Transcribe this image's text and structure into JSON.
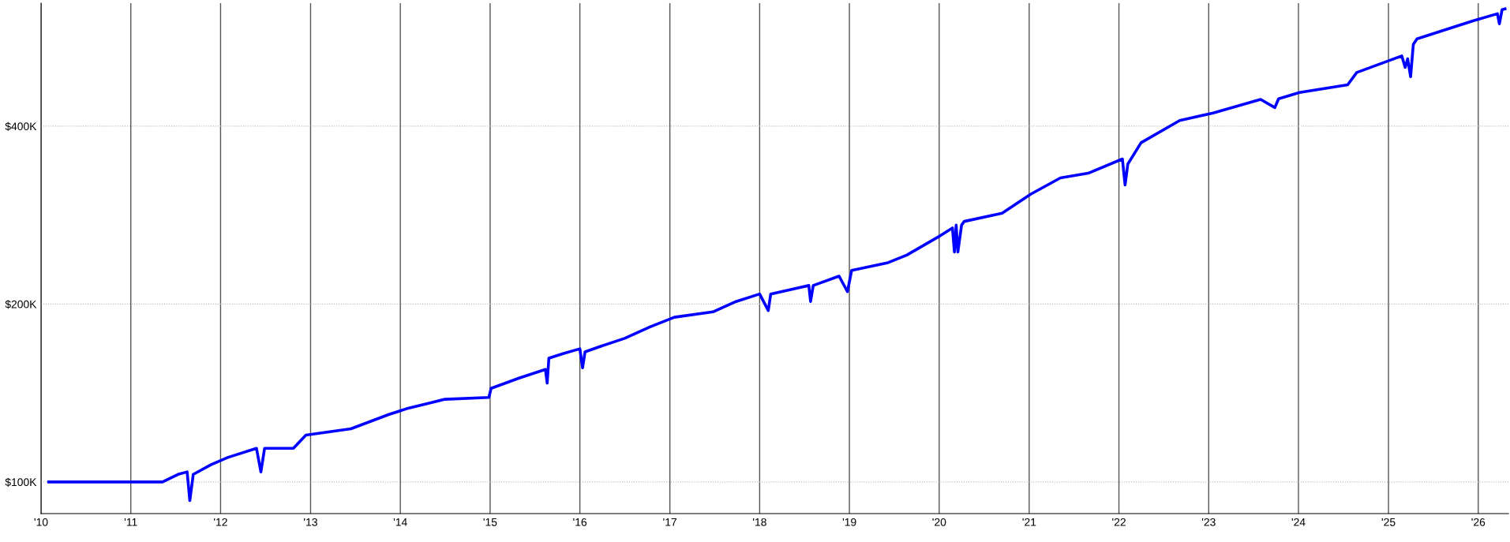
{
  "chart_data": {
    "type": "line",
    "log": "y",
    "grid": true,
    "marker": "none",
    "line_style": "solid",
    "x": [
      "2010-02-01",
      "2011-05-10",
      "2011-07-12",
      "2011-08-18",
      "2011-08-29",
      "2011-09-12",
      "2011-11-24",
      "2012-01-30",
      "2012-05-26",
      "2012-06-13",
      "2012-06-28",
      "2012-10-23",
      "2012-12-13",
      "2013-06-14",
      "2013-11-14",
      "2014-01-26",
      "2014-07-01",
      "2014-12-27",
      "2015-01-05",
      "2015-05-01",
      "2015-08-14",
      "2015-08-21",
      "2015-08-28",
      "2015-10-27",
      "2016-01-01",
      "2016-01-12",
      "2016-01-22",
      "2016-03-14",
      "2016-07-01",
      "2016-10-12",
      "2017-01-19",
      "2017-06-25",
      "2017-09-27",
      "2018-01-01",
      "2018-02-05",
      "2018-02-15",
      "2018-07-20",
      "2018-07-27",
      "2018-08-07",
      "2018-11-20",
      "2018-12-24",
      "2019-01-10",
      "2019-06-07",
      "2019-08-22",
      "2020-01-05",
      "2020-02-24",
      "2020-03-03",
      "2020-03-10",
      "2020-03-17",
      "2020-04-01",
      "2020-04-12",
      "2020-09-13",
      "2021-01-08",
      "2021-05-08",
      "2021-08-29",
      "2022-01-15",
      "2022-01-26",
      "2022-02-06",
      "2022-04-01",
      "2022-09-05",
      "2023-01-19",
      "2023-07-31",
      "2023-09-27",
      "2023-10-12",
      "2024-01-05",
      "2024-07-19",
      "2024-08-25",
      "2025-02-24",
      "2025-03-10",
      "2025-03-20",
      "2025-04-01",
      "2025-04-12",
      "2025-04-27",
      "2025-12-10",
      "2026-03-20",
      "2026-03-28",
      "2026-04-08",
      "2026-04-20"
    ],
    "series": [
      {
        "color": "#0000ff",
        "values": [
          100000,
          100000,
          103000,
          104000,
          93000,
          103000,
          107000,
          110000,
          114000,
          104000,
          114000,
          114000,
          120000,
          123000,
          130000,
          133000,
          138000,
          139000,
          144000,
          150000,
          155000,
          147000,
          162000,
          165000,
          168000,
          156000,
          166000,
          169000,
          175000,
          183000,
          190000,
          194000,
          202000,
          208000,
          195000,
          208000,
          215000,
          202000,
          215000,
          223000,
          210000,
          228000,
          235000,
          242000,
          261000,
          269000,
          245000,
          272000,
          245000,
          272000,
          276000,
          285000,
          307000,
          327000,
          333000,
          352000,
          318000,
          345000,
          375000,
          409000,
          421000,
          444000,
          430000,
          445000,
          456000,
          470000,
          493000,
          526000,
          503000,
          520000,
          485000,
          550000,
          562000,
          603000,
          620000,
          596000,
          630000,
          632000
        ]
      }
    ],
    "xlim": [
      "2010-01-01",
      "2026-05-04"
    ],
    "xticks": [
      {
        "value": "2010-01-01",
        "label": "'10"
      },
      {
        "value": "2011-01-01",
        "label": "'11"
      },
      {
        "value": "2012-01-01",
        "label": "'12"
      },
      {
        "value": "2013-01-01",
        "label": "'13"
      },
      {
        "value": "2014-01-01",
        "label": "'14"
      },
      {
        "value": "2015-01-01",
        "label": "'15"
      },
      {
        "value": "2016-01-01",
        "label": "'16"
      },
      {
        "value": "2017-01-01",
        "label": "'17"
      },
      {
        "value": "2018-01-01",
        "label": "'18"
      },
      {
        "value": "2019-01-01",
        "label": "'19"
      },
      {
        "value": "2020-01-01",
        "label": "'20"
      },
      {
        "value": "2021-01-01",
        "label": "'21"
      },
      {
        "value": "2022-01-01",
        "label": "'22"
      },
      {
        "value": "2023-01-01",
        "label": "'23"
      },
      {
        "value": "2024-01-01",
        "label": "'24"
      },
      {
        "value": "2025-01-01",
        "label": "'25"
      },
      {
        "value": "2026-01-01",
        "label": "'26"
      }
    ],
    "ylim": [
      88400,
      646000
    ],
    "yticks": [
      {
        "value": 100000,
        "label": "$100K"
      },
      {
        "value": 200000,
        "label": "$200K"
      },
      {
        "value": 400000,
        "label": "$400K"
      }
    ]
  }
}
